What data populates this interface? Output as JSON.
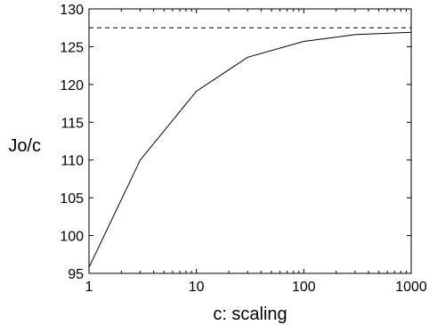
{
  "chart_data": {
    "type": "line",
    "title": "",
    "xlabel": "c: scaling",
    "ylabel": "Jo/c",
    "x_scale": "log",
    "xlim": [
      1,
      1000
    ],
    "ylim": [
      95,
      130
    ],
    "x_ticks": [
      {
        "value": 1,
        "label": "1"
      },
      {
        "value": 10,
        "label": "10"
      },
      {
        "value": 100,
        "label": "100"
      },
      {
        "value": 1000,
        "label": "1000"
      }
    ],
    "y_ticks": [
      {
        "value": 95,
        "label": "95"
      },
      {
        "value": 100,
        "label": "100"
      },
      {
        "value": 105,
        "label": "105"
      },
      {
        "value": 110,
        "label": "110"
      },
      {
        "value": 115,
        "label": "115"
      },
      {
        "value": 120,
        "label": "120"
      },
      {
        "value": 125,
        "label": "125"
      },
      {
        "value": 130,
        "label": "130"
      }
    ],
    "grid": false,
    "series": [
      {
        "style": "solid",
        "color": "#000000",
        "x": [
          1,
          3,
          10,
          30,
          100,
          300,
          1000
        ],
        "y": [
          95.8,
          110.0,
          119.1,
          123.6,
          125.7,
          126.6,
          126.9
        ]
      },
      {
        "style": "dashed",
        "color": "#000000",
        "x": [
          1,
          1000
        ],
        "y": [
          127.5,
          127.5
        ]
      }
    ]
  }
}
